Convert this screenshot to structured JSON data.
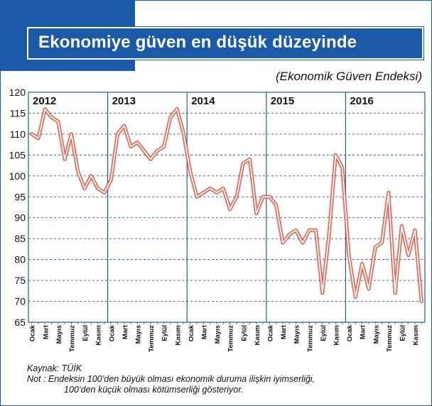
{
  "header": {
    "title": "Ekonomiye güven en düşük düzeyinde",
    "subtitle": "(Ekonomik Güven Endeksi)"
  },
  "footer": {
    "source": "Kaynak: TÜİK",
    "note_line1": "Not : Endeksin 100’den büyük olması ekonomik duruma ilişkin iyimserliği,",
    "note_line2": "100’den küçük olması kötümserliği gösteriyor."
  },
  "colors": {
    "accent": "#1a5aa6",
    "line": "#e0604a",
    "grid": "#1a5aa6"
  },
  "chart_data": {
    "type": "line",
    "title": "Ekonomiye güven en düşük düzeyinde",
    "subtitle": "(Ekonomik Güven Endeksi)",
    "years": [
      "2012",
      "2013",
      "2014",
      "2015",
      "2016"
    ],
    "month_labels": [
      "Ocak",
      "Mart",
      "Mayıs",
      "Temmuz",
      "Eylül",
      "Kasım"
    ],
    "yticks": [
      65,
      70,
      75,
      80,
      85,
      90,
      95,
      100,
      105,
      110,
      115,
      120
    ],
    "ylim": [
      65,
      120
    ],
    "grid": true,
    "series": [
      {
        "values": [
          110,
          109,
          116,
          114,
          113,
          104,
          110,
          101,
          97,
          100,
          97,
          96,
          99,
          110,
          112,
          107,
          108,
          106,
          104,
          106,
          107,
          114,
          116,
          110,
          101,
          95,
          96,
          97,
          96,
          97,
          92,
          95,
          103,
          104,
          91,
          95,
          95,
          93,
          84,
          86,
          87,
          84,
          87,
          87,
          72,
          86,
          105,
          102,
          81,
          71,
          79,
          73,
          83,
          84,
          96,
          72,
          88,
          81,
          87,
          70
        ]
      }
    ]
  }
}
